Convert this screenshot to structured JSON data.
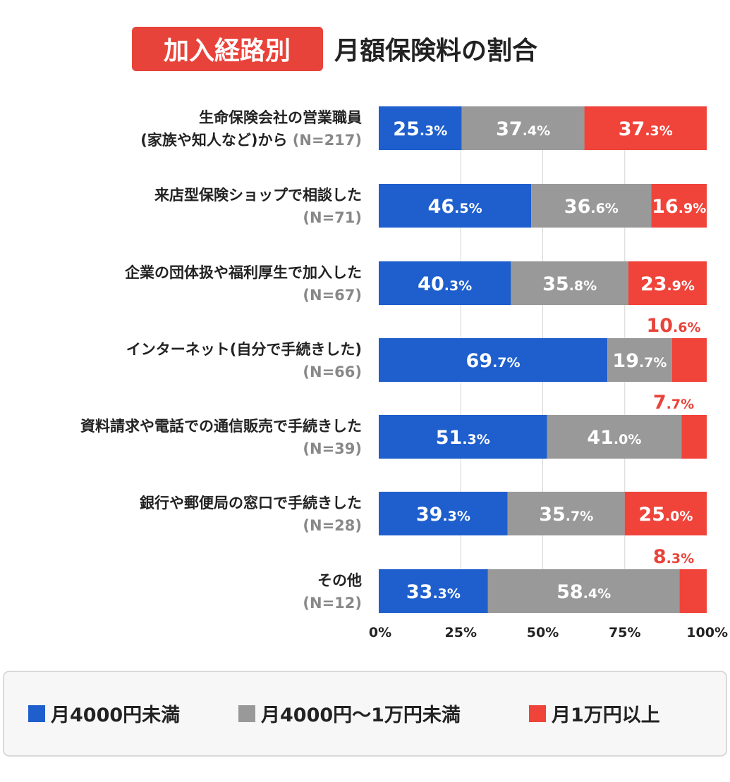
{
  "title_badge": "加入経路別",
  "chart_data": {
    "type": "bar",
    "orientation": "horizontal",
    "stacked": true,
    "title": "月額保険料の割合",
    "unit": "%",
    "categories": [
      {
        "label": "生命保険会社の営業職員",
        "label2": "(家族や知人など)から",
        "n": "(N=217)"
      },
      {
        "label": "来店型保険ショップで相談した",
        "label2": "",
        "n": "(N=71)"
      },
      {
        "label": "企業の団体扱や福利厚生で加入した",
        "label2": "",
        "n": "(N=67)"
      },
      {
        "label": "インターネット(自分で手続きした)",
        "label2": "",
        "n": "(N=66)"
      },
      {
        "label": "資料請求や電話での通信販売で手続きした",
        "label2": "",
        "n": "(N=39)"
      },
      {
        "label": "銀行や郵便局の窓口で手続きした",
        "label2": "",
        "n": "(N=28)"
      },
      {
        "label": "その他",
        "label2": "",
        "n": "(N=12)"
      }
    ],
    "series": [
      {
        "name": "月4000円未満",
        "color": "#1f5fcd",
        "values": [
          25.3,
          46.5,
          40.3,
          69.7,
          51.3,
          39.3,
          33.3
        ]
      },
      {
        "name": "月4000円〜1万円未満",
        "color": "#999999",
        "values": [
          37.4,
          36.6,
          35.8,
          19.7,
          41.0,
          35.7,
          58.4
        ]
      },
      {
        "name": "月1万円以上",
        "color": "#f0433a",
        "values": [
          37.3,
          16.9,
          23.9,
          10.6,
          7.7,
          25.0,
          8.3
        ]
      }
    ],
    "xlim": [
      0,
      100
    ],
    "xticks": [
      "0%",
      "25%",
      "50%",
      "75%",
      "100%"
    ],
    "grid": true,
    "legend_position": "bottom"
  }
}
